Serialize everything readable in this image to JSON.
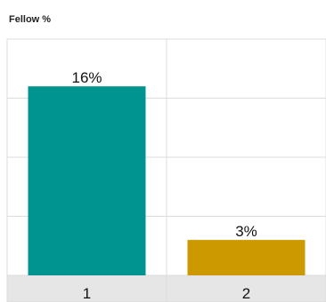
{
  "chart_data": {
    "type": "bar",
    "title": "Fellow %",
    "categories": [
      "1",
      "2"
    ],
    "values": [
      16,
      3
    ],
    "data_labels": [
      "16%",
      "3%"
    ],
    "colors": [
      "#009490",
      "#cc9a00"
    ],
    "ylim": [
      0,
      20
    ],
    "grid": true,
    "xlabel": "",
    "ylabel": "",
    "legend": "none"
  },
  "colors": {
    "grid": "#dcdcdc",
    "axis_band": "#e6e6e6",
    "text": "#111111"
  }
}
